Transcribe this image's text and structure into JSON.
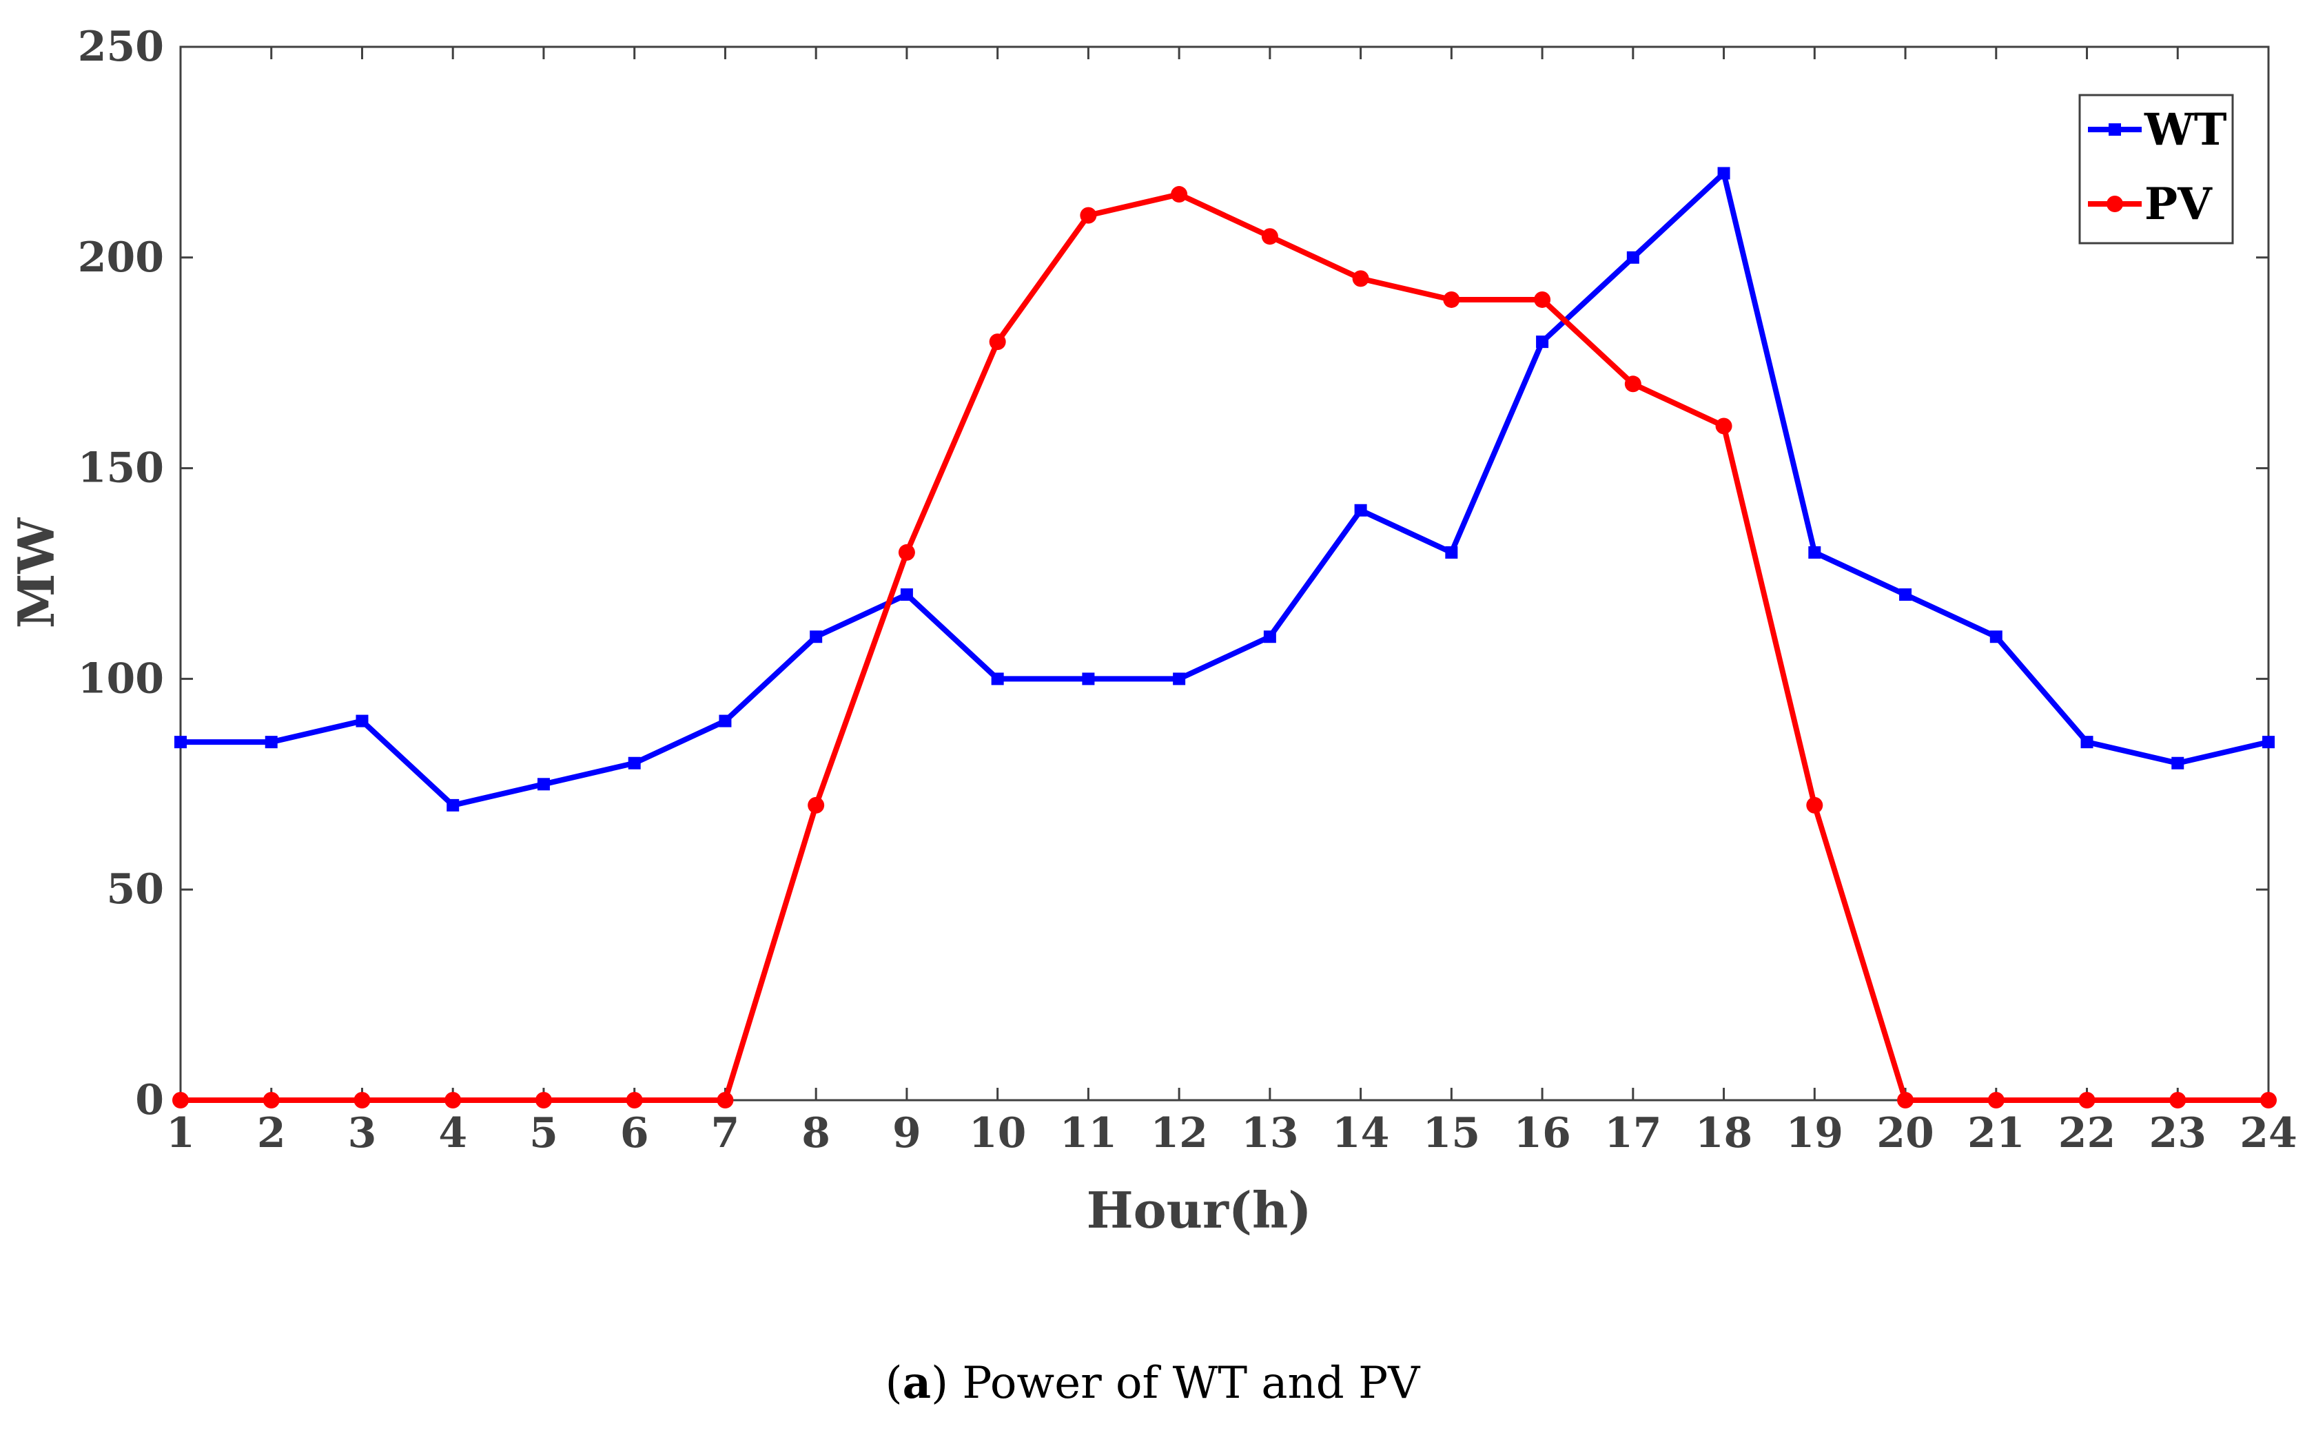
{
  "chart_data": {
    "type": "line",
    "title": "",
    "xlabel": "Hour(h)",
    "ylabel": "MW",
    "categories": [
      "1",
      "2",
      "3",
      "4",
      "5",
      "6",
      "7",
      "8",
      "9",
      "10",
      "11",
      "12",
      "13",
      "14",
      "15",
      "16",
      "17",
      "18",
      "19",
      "20",
      "21",
      "22",
      "23",
      "24"
    ],
    "ylim": [
      0,
      250
    ],
    "yticks": [
      "0",
      "50",
      "100",
      "150",
      "200",
      "250"
    ],
    "grid": false,
    "legend": "top-right",
    "series": [
      {
        "name": "WT",
        "color": "#0000ff",
        "marker": "square",
        "values": [
          85,
          85,
          90,
          70,
          75,
          80,
          90,
          110,
          120,
          100,
          100,
          100,
          110,
          140,
          130,
          180,
          200,
          220,
          130,
          120,
          110,
          85,
          80,
          85
        ]
      },
      {
        "name": "PV",
        "color": "#ff0000",
        "marker": "circle",
        "values": [
          0,
          0,
          0,
          0,
          0,
          0,
          0,
          70,
          130,
          180,
          210,
          215,
          205,
          195,
          190,
          190,
          170,
          160,
          70,
          0,
          0,
          0,
          0,
          0
        ]
      }
    ]
  },
  "caption": {
    "label": "a",
    "text": "Power of WT and PV"
  }
}
